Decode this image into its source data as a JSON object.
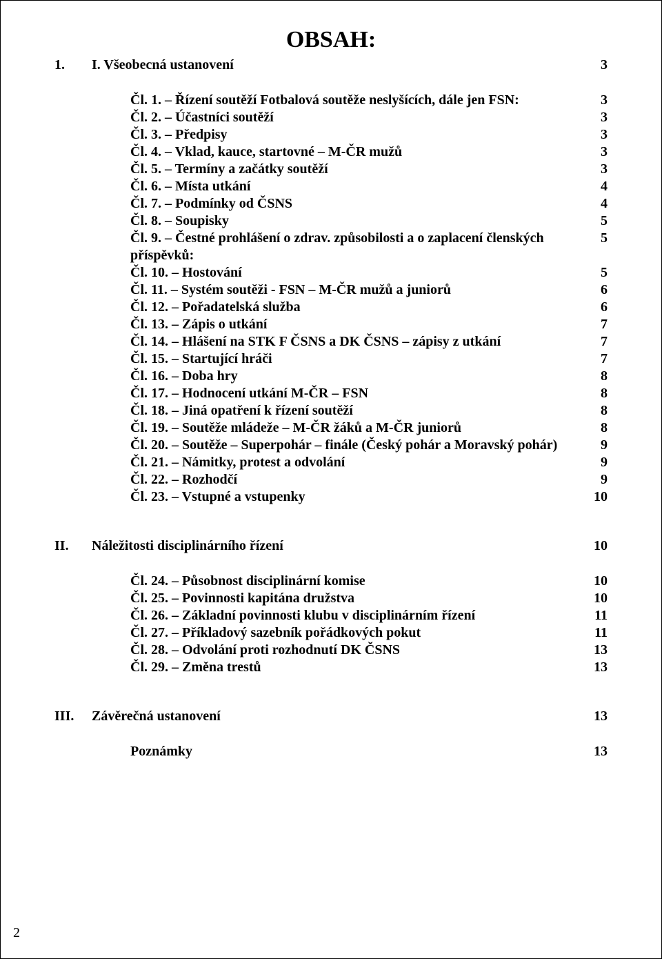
{
  "title": "OBSAH:",
  "pageNumber": "2",
  "sections": {
    "s1": {
      "num": "1.",
      "label": "I. Všeobecná ustanovení",
      "page": "3"
    },
    "s2": {
      "num": "II.",
      "label": "Náležitosti disciplinárního řízení",
      "page": "10"
    },
    "s3": {
      "num": "III.",
      "label": "Závěrečná ustanovení",
      "page": "13"
    },
    "notes": {
      "label": "Poznámky",
      "page": "13"
    }
  },
  "block1": [
    {
      "text": "Čl. 1. – Řízení soutěží Fotbalová soutěže neslyšících, dále jen FSN:",
      "page": "3"
    },
    {
      "text": "Čl. 2. – Účastníci soutěží",
      "page": "3"
    },
    {
      "text": "Čl. 3. – Předpisy",
      "page": "3"
    },
    {
      "text": "Čl. 4. – Vklad, kauce, startovné – M-ČR mužů",
      "page": "3"
    },
    {
      "text": "Čl. 5. – Termíny a začátky soutěží",
      "page": "3"
    },
    {
      "text": "Čl. 6. – Místa utkání",
      "page": "4"
    },
    {
      "text": "Čl. 7. – Podmínky od ČSNS",
      "page": "4"
    },
    {
      "text": "Čl. 8. – Soupisky",
      "page": "5"
    },
    {
      "text": "Čl. 9. – Čestné prohlášení o zdrav. způsobilosti a o zaplacení členských příspěvků:",
      "page": "5"
    },
    {
      "text": "Čl. 10. – Hostování",
      "page": "5"
    },
    {
      "text": "Čl. 11. – Systém soutěži - FSN – M-ČR mužů a juniorů",
      "page": "6"
    },
    {
      "text": "Čl. 12. – Pořadatelská služba",
      "page": "6"
    },
    {
      "text": "Čl. 13. – Zápis o utkání",
      "page": "7"
    },
    {
      "text": "Čl. 14. – Hlášení na STK F ČSNS a DK ČSNS – zápisy z utkání",
      "page": "7"
    },
    {
      "text": "Čl. 15. – Startující hráči",
      "page": "7"
    },
    {
      "text": "Čl. 16. – Doba hry",
      "page": "8"
    },
    {
      "text": "Čl. 17. – Hodnocení utkání M-ČR – FSN",
      "page": "8"
    },
    {
      "text": "Čl. 18. – Jiná opatření k řízení soutěží",
      "page": "8"
    },
    {
      "text": "Čl. 19. – Soutěže mládeže – M-ČR žáků a M-ČR juniorů",
      "page": "8"
    },
    {
      "text": "Čl. 20. – Soutěže – Superpohár – finále (Český pohár a Moravský pohár)",
      "page": "9"
    },
    {
      "text": "Čl. 21. – Námitky, protest a odvolání",
      "page": "9"
    },
    {
      "text": "Čl. 22. – Rozhodčí",
      "page": "9"
    },
    {
      "text": "Čl. 23. – Vstupné a vstupenky",
      "page": "10"
    }
  ],
  "block2": [
    {
      "text": "Čl. 24. – Působnost disciplinární komise",
      "page": "10"
    },
    {
      "text": "Čl. 25. – Povinnosti kapitána družstva",
      "page": "10"
    },
    {
      "text": "Čl. 26. – Základní povinnosti klubu v disciplinárním řízení",
      "page": "11"
    },
    {
      "text": "Čl. 27. – Příkladový sazebník pořádkových pokut",
      "page": "11"
    },
    {
      "text": "Čl. 28. – Odvolání proti rozhodnutí DK ČSNS",
      "page": "13"
    },
    {
      "text": "Čl. 29. – Změna trestů",
      "page": "13"
    }
  ]
}
